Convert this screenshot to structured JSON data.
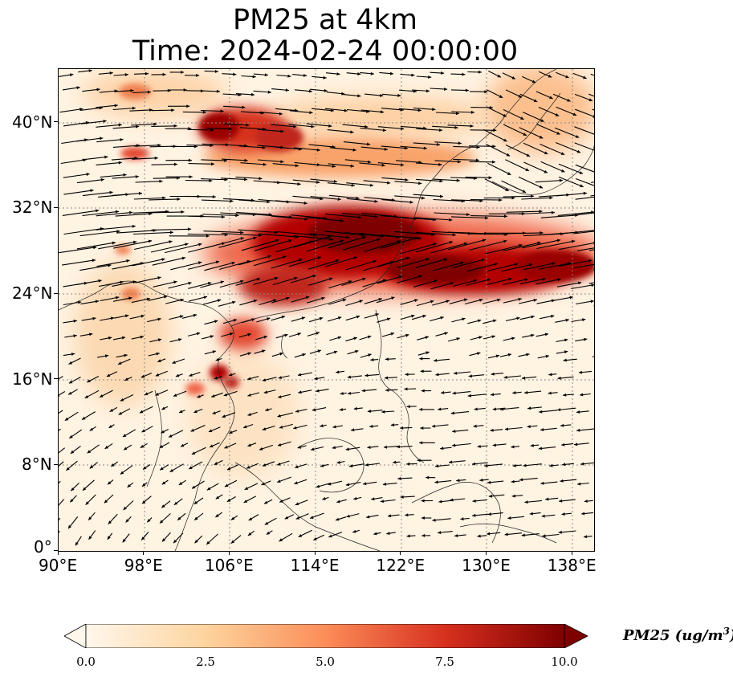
{
  "title": {
    "line1": "PM25 at 4km",
    "line2": "Time: 2024-02-24 00:00:00"
  },
  "map": {
    "lon_range": [
      90,
      140
    ],
    "lat_range": [
      0,
      45
    ],
    "x_ticks": [
      "90°E",
      "98°E",
      "106°E",
      "114°E",
      "122°E",
      "130°E",
      "138°E"
    ],
    "x_tick_values": [
      90,
      98,
      106,
      114,
      122,
      130,
      138
    ],
    "y_ticks": [
      "0°",
      "8°N",
      "16°N",
      "24°N",
      "32°N",
      "40°N"
    ],
    "y_tick_values": [
      0,
      8,
      16,
      24,
      32,
      40
    ],
    "gridlines": "dotted",
    "wind_vectors": "shown"
  },
  "colorbar": {
    "label_main": "PM25 (ug/m",
    "label_sup": "3",
    "label_end": ")",
    "ticks": [
      "0.0",
      "2.5",
      "5.0",
      "7.5",
      "10.0"
    ],
    "tick_values": [
      0,
      2.5,
      5,
      7.5,
      10
    ],
    "range": [
      0,
      10
    ],
    "extend": "both",
    "colormap": "OrRd",
    "colors": [
      "#fff7ec",
      "#fdd49e",
      "#fc8d59",
      "#d7301f",
      "#7f0000"
    ]
  }
}
